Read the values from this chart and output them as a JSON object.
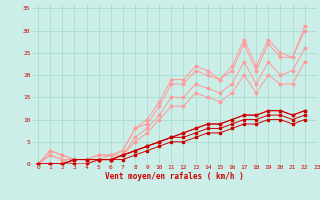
{
  "title": "",
  "xlabel": "Vent moyen/en rafales ( km/h )",
  "ylabel": "",
  "bg_color": "#cceee8",
  "grid_color": "#aaddcc",
  "xlim": [
    -0.5,
    23
  ],
  "ylim": [
    0,
    36
  ],
  "yticks": [
    0,
    5,
    10,
    15,
    20,
    25,
    30,
    35
  ],
  "xticks": [
    0,
    1,
    2,
    3,
    4,
    5,
    6,
    7,
    8,
    9,
    10,
    11,
    12,
    13,
    14,
    15,
    16,
    17,
    18,
    19,
    20,
    21,
    22,
    23
  ],
  "series_light": [
    [
      0,
      3,
      2,
      1,
      1,
      2,
      2,
      3,
      8,
      10,
      14,
      19,
      19,
      22,
      21,
      19,
      22,
      28,
      22,
      28,
      25,
      24,
      31
    ],
    [
      0,
      3,
      2,
      1,
      1,
      2,
      2,
      3,
      8,
      9,
      13,
      18,
      18,
      21,
      20,
      19,
      21,
      27,
      21,
      27,
      24,
      24,
      30
    ],
    [
      0,
      2,
      1,
      1,
      1,
      1,
      2,
      2,
      6,
      8,
      11,
      15,
      15,
      18,
      17,
      16,
      18,
      23,
      18,
      23,
      20,
      21,
      26
    ],
    [
      0,
      2,
      1,
      0,
      0,
      1,
      1,
      2,
      5,
      7,
      10,
      13,
      13,
      16,
      15,
      14,
      16,
      20,
      16,
      20,
      18,
      18,
      23
    ]
  ],
  "series_dark": [
    [
      0,
      0,
      0,
      1,
      1,
      1,
      1,
      2,
      3,
      4,
      5,
      6,
      7,
      8,
      9,
      9,
      10,
      11,
      11,
      12,
      12,
      11,
      12
    ],
    [
      0,
      0,
      0,
      1,
      1,
      1,
      1,
      2,
      3,
      4,
      5,
      6,
      7,
      8,
      9,
      9,
      10,
      11,
      11,
      12,
      12,
      11,
      12
    ],
    [
      0,
      0,
      0,
      1,
      1,
      1,
      1,
      2,
      3,
      4,
      5,
      6,
      6,
      7,
      8,
      8,
      9,
      10,
      10,
      11,
      11,
      10,
      11
    ],
    [
      0,
      0,
      0,
      0,
      0,
      1,
      1,
      1,
      2,
      3,
      4,
      5,
      5,
      6,
      7,
      7,
      8,
      9,
      9,
      10,
      10,
      9,
      10
    ]
  ],
  "light_color": "#ff9999",
  "dark_color": "#cc0000",
  "marker_light": "D",
  "marker_dark": "s",
  "marker_size_light": 1.5,
  "marker_size_dark": 1.5,
  "line_width": 0.7,
  "xlabel_fontsize": 5.5,
  "tick_fontsize": 4.5
}
